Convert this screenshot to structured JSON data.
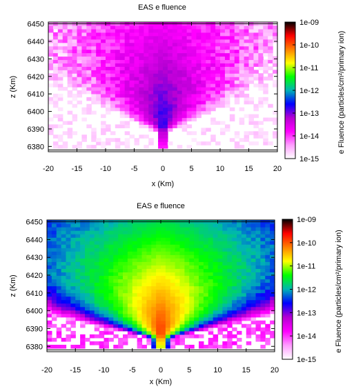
{
  "colors": {
    "colormap": [
      "#ffffff",
      "#ff9cff",
      "#ff00ff",
      "#b400d2",
      "#0000ff",
      "#00b4b4",
      "#00ff00",
      "#ffff00",
      "#ff8000",
      "#ff0000",
      "#000000"
    ]
  },
  "chart_data": [
    {
      "type": "heatmap",
      "title": "EAS e fluence",
      "xlabel": "x  (Km)",
      "ylabel": "z  (Km)",
      "colorbar_label": "e Fluence (particles/cm²/primary ion)",
      "xlim": [
        -20,
        20
      ],
      "ylim": [
        6377,
        6451
      ],
      "x_ticks": [
        -20,
        -15,
        -10,
        -5,
        0,
        5,
        10,
        15,
        20
      ],
      "y_ticks": [
        6380,
        6390,
        6400,
        6410,
        6420,
        6430,
        6440,
        6450
      ],
      "colorbar_ticks": [
        "1e-09",
        "1e-10",
        "1e-11",
        "1e-12",
        "1e-13",
        "1e-14",
        "1e-15"
      ],
      "colorbar_range_log10": [
        -15,
        -9
      ],
      "ground_line_z": 6378,
      "top_line_z": 6450,
      "model": {
        "peak_log10": -12.6,
        "peak_x": 0,
        "peak_z": 6389,
        "core_spread": 0.5,
        "wing_spread": 2.2,
        "vertical_decay": 0.018,
        "floor_log10": -15.0,
        "edge_noise": 0.9
      }
    },
    {
      "type": "heatmap",
      "title": "EAS e fluence",
      "xlabel": "x  (Km)",
      "ylabel": "z  (Km)",
      "colorbar_label": "e Fluence (particles/cm²/primary ion)",
      "xlim": [
        -20,
        20
      ],
      "ylim": [
        6377,
        6451
      ],
      "x_ticks": [
        -20,
        -15,
        -10,
        -5,
        0,
        5,
        10,
        15,
        20
      ],
      "y_ticks": [
        6380,
        6390,
        6400,
        6410,
        6420,
        6430,
        6440,
        6450
      ],
      "colorbar_ticks": [
        "1e-09",
        "1e-10",
        "1e-11",
        "1e-12",
        "1e-13",
        "1e-14",
        "1e-15"
      ],
      "colorbar_range_log10": [
        -15,
        -9
      ],
      "ground_line_z": 6378,
      "top_line_z": 6450,
      "model": {
        "peak_log10": -9.7,
        "peak_x": 0,
        "peak_z": 6385,
        "core_spread": 0.5,
        "wing_spread": 2.8,
        "vertical_decay": 0.03,
        "floor_log10": -14.2,
        "edge_noise": 0.3
      }
    }
  ]
}
